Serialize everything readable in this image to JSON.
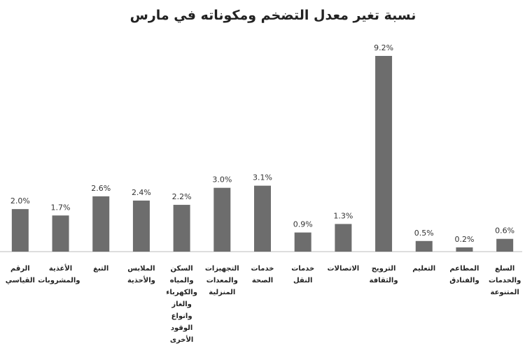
{
  "chart_data": {
    "type": "bar",
    "title": "نسبة تغير معدل التضخم ومكوناته في مارس",
    "categories": [
      "الرقم القياسي",
      "الأغذية والمشروبات",
      "التبغ",
      "الملابس والأحذية",
      "السكن والمياه والكهرباء والغاز وانواع الوقود الأخرى",
      "التجهيزات والمعدات المنزلية",
      "خدمات الصحة",
      "خدمات النقل",
      "الاتصالات",
      "الترويج والثقافة",
      "التعليم",
      "المطاعم والفنادق",
      "السلع والخدمات المتنوعة"
    ],
    "values": [
      2.0,
      1.7,
      2.6,
      2.4,
      2.2,
      3.0,
      3.1,
      0.9,
      1.3,
      9.2,
      0.5,
      0.2,
      0.6
    ],
    "value_labels": [
      "2.0%",
      "1.7%",
      "2.6%",
      "2.4%",
      "2.2%",
      "3.0%",
      "3.1%",
      "0.9%",
      "1.3%",
      "9.2%",
      "0.5%",
      "0.2%",
      "0.6%"
    ],
    "color": "#6d6d6d"
  }
}
